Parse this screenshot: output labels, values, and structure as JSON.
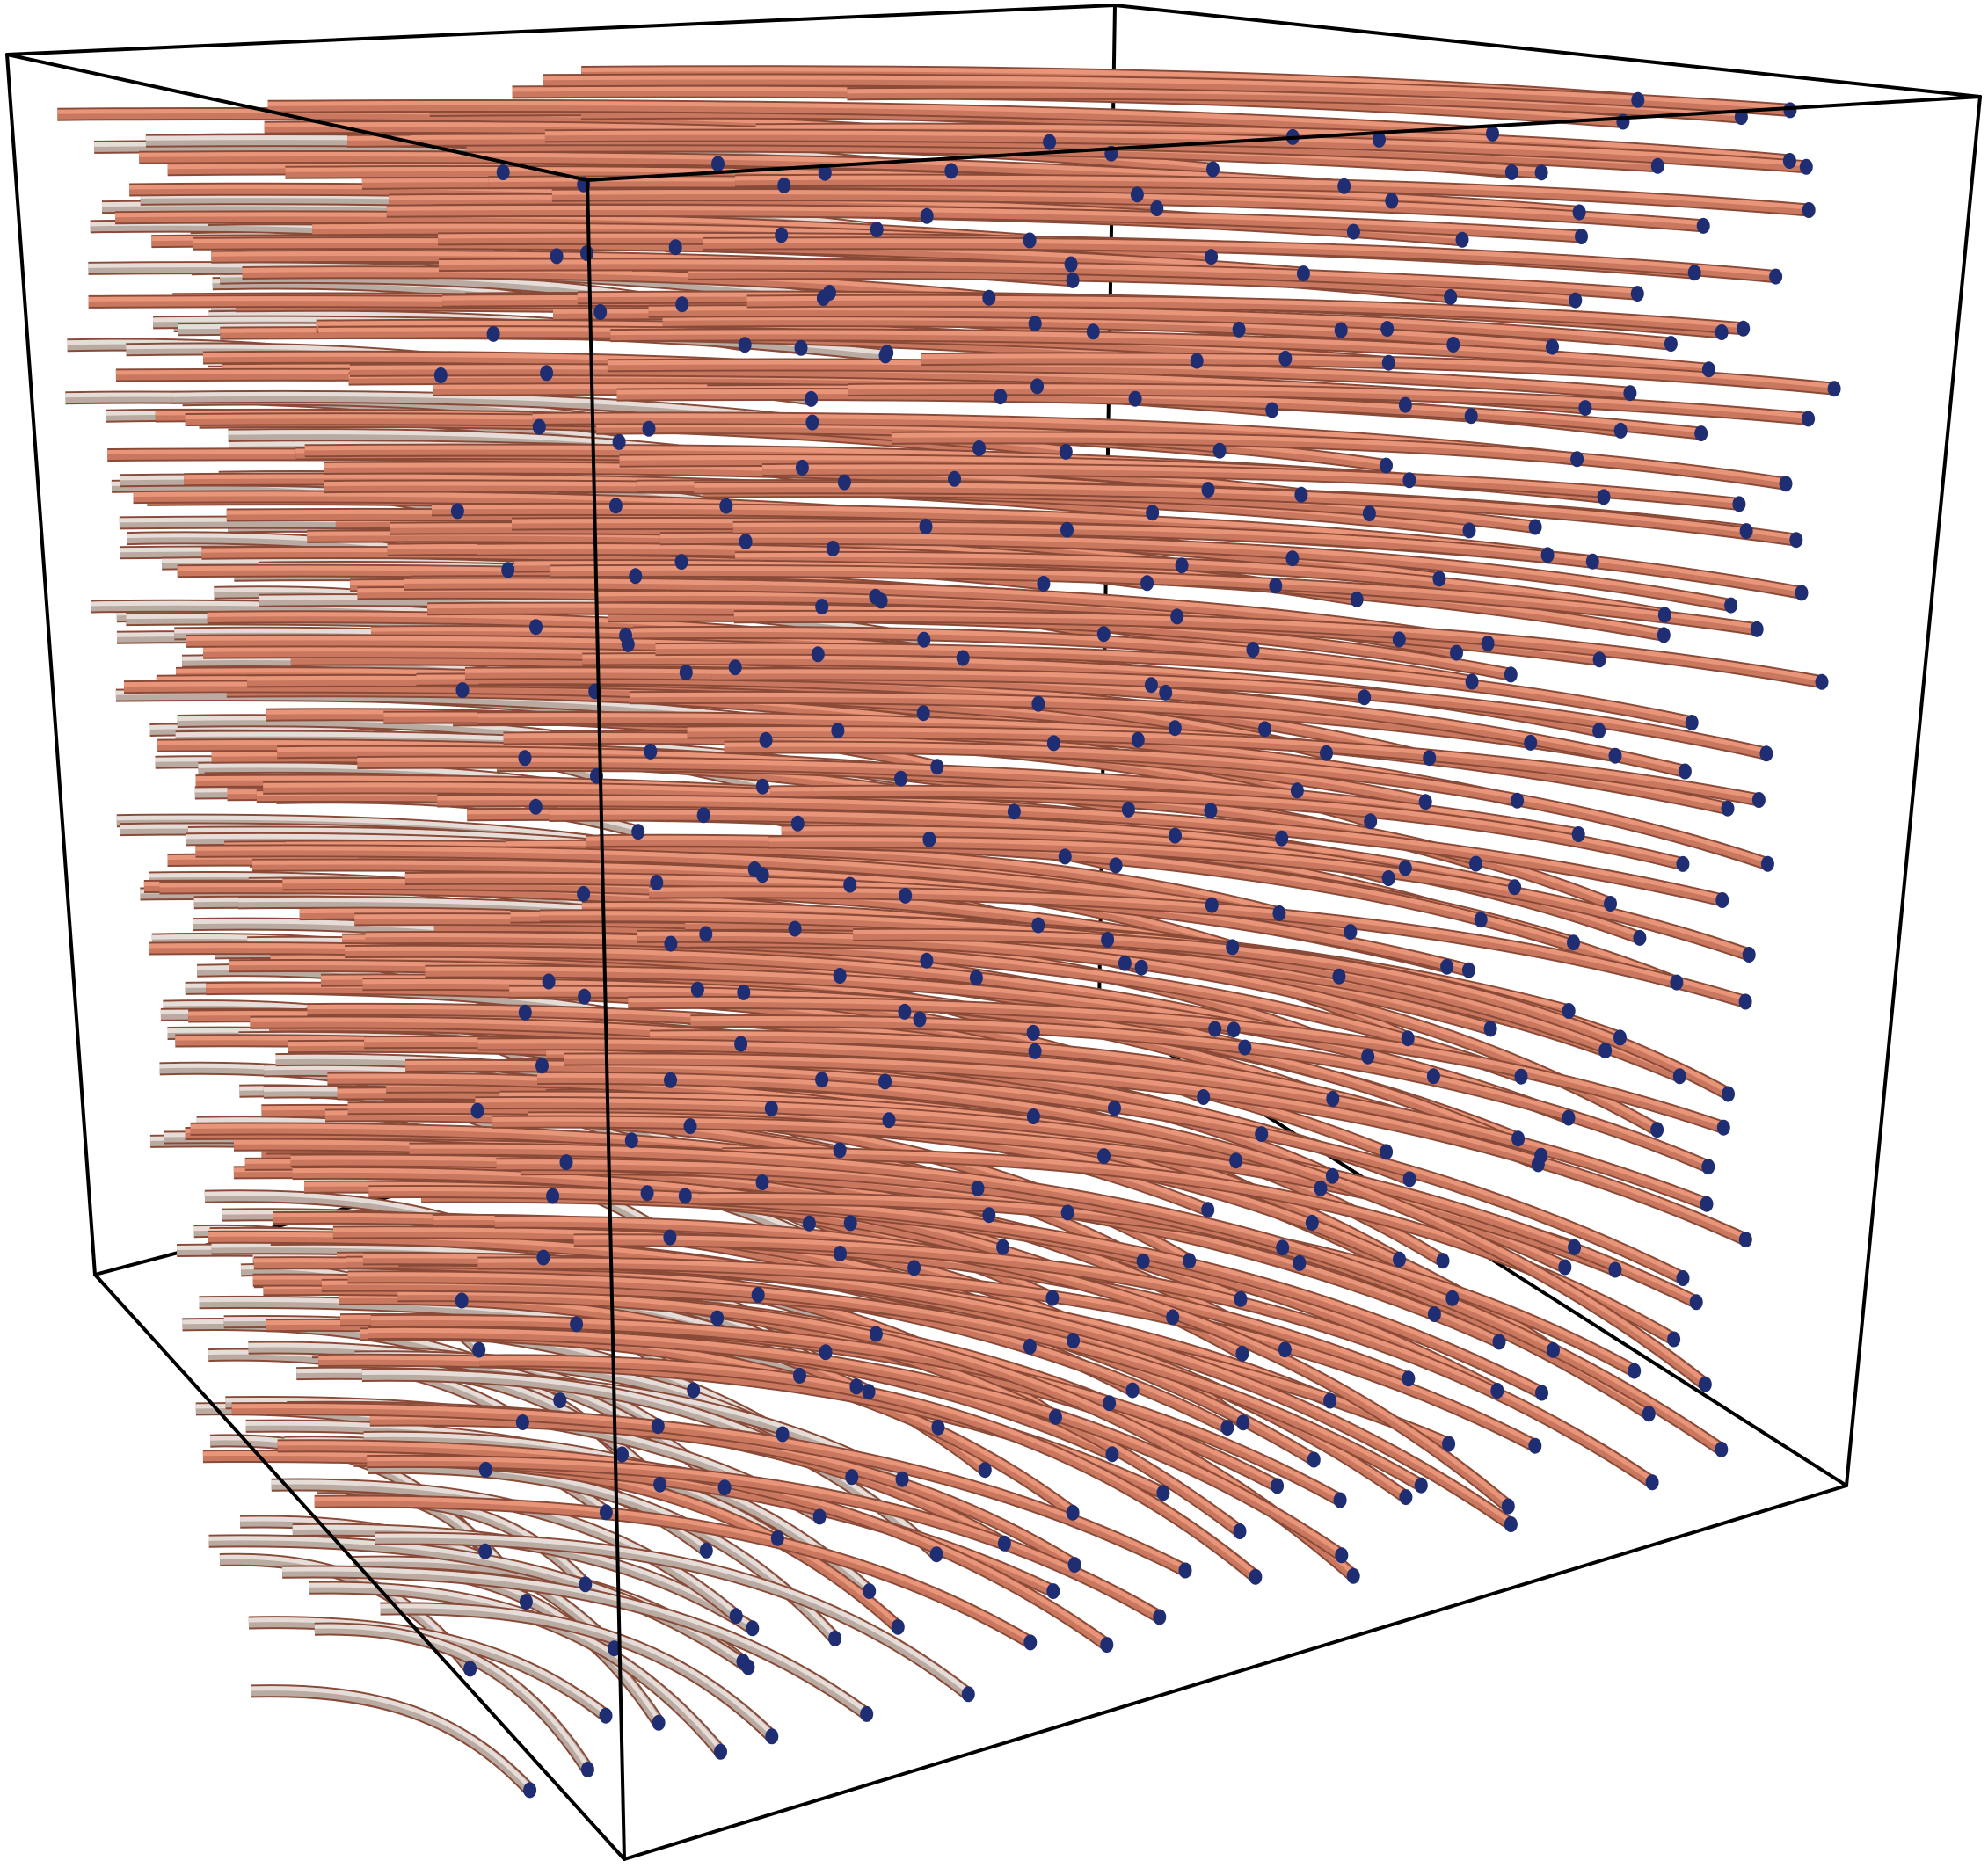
{
  "scene": {
    "type": "3d-streamline-tubes-in-bounding-box",
    "background_color": "#ffffff",
    "box_edge_color": "#000000",
    "tube_color_lit": "#e8957a",
    "tube_color_mid": "#c9785f",
    "tube_color_shadow": "#8a4a38",
    "tube_color_far": "#b9aaa2",
    "glyph_color": "#1f2d72",
    "glyph_label": "seed-point-glyphs"
  }
}
